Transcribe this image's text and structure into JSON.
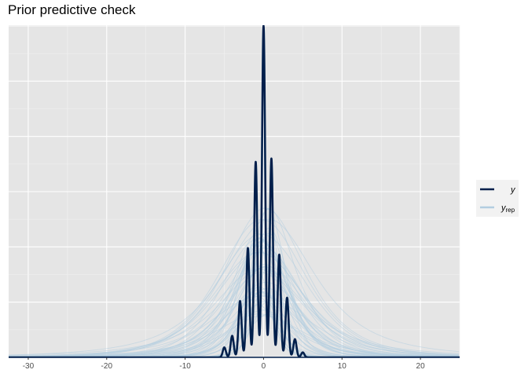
{
  "chart_data": {
    "type": "line",
    "title": "Prior predictive check",
    "xlabel": "",
    "ylabel": "",
    "xlim": [
      -32.5,
      25
    ],
    "x_ticks": [
      -30,
      -20,
      -10,
      0,
      10,
      20
    ],
    "grid": true,
    "legend_position": "right",
    "legend": [
      {
        "name": "y",
        "color": "#011f4b",
        "label": "y"
      },
      {
        "name": "y_rep",
        "color": "#b3cde0",
        "label": "y",
        "subscript": "rep"
      }
    ],
    "observed": {
      "name": "y",
      "description": "multi-modal density of integer-valued observations",
      "peaks": [
        {
          "x": -5,
          "height": 0.06
        },
        {
          "x": -4,
          "height": 0.13
        },
        {
          "x": -3,
          "height": 0.34
        },
        {
          "x": -2,
          "height": 0.66
        },
        {
          "x": -1,
          "height": 1.18
        },
        {
          "x": 0,
          "height": 2.0
        },
        {
          "x": 1,
          "height": 1.2
        },
        {
          "x": 2,
          "height": 0.62
        },
        {
          "x": 3,
          "height": 0.36
        },
        {
          "x": 4,
          "height": 0.11
        },
        {
          "x": 5,
          "height": 0.03
        }
      ]
    },
    "replicates": {
      "name": "y_rep",
      "count": 50,
      "center": 0,
      "height_range": [
        0.25,
        0.92
      ],
      "scale_range": [
        1.3,
        6.5
      ]
    }
  }
}
